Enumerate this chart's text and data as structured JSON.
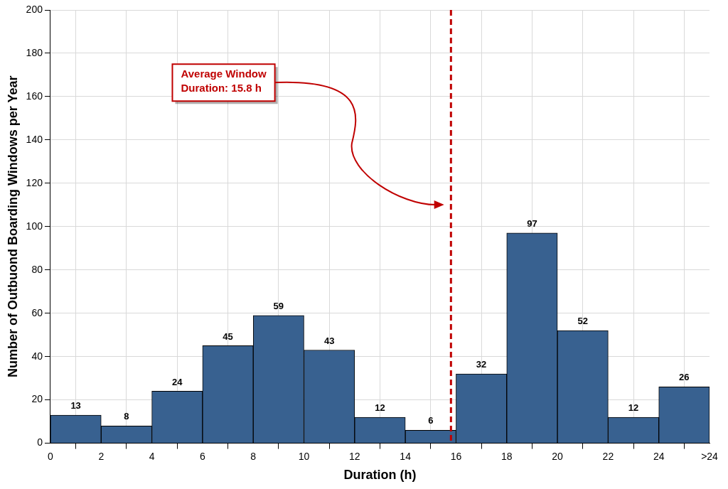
{
  "chart_data": {
    "type": "histogram",
    "xlabel": "Duration (h)",
    "ylabel": "Number of Outbuond Boarding Windows per Year",
    "bins": [
      0,
      2,
      4,
      6,
      8,
      10,
      12,
      14,
      16,
      18,
      20,
      22,
      24,
      26
    ],
    "values": [
      13,
      8,
      24,
      45,
      59,
      43,
      12,
      6,
      32,
      97,
      52,
      12,
      26
    ],
    "color": "#386190",
    "data_labels": true,
    "xlim": [
      0,
      26
    ],
    "xticks": [
      0,
      2,
      4,
      6,
      8,
      10,
      12,
      14,
      16,
      18,
      20,
      22,
      24,
      {
        "value": 26,
        "label": ">24"
      }
    ],
    "ylim": [
      0,
      200
    ],
    "yticks": [
      0,
      20,
      40,
      60,
      80,
      100,
      120,
      140,
      160,
      180,
      200
    ],
    "grid": true,
    "legend": false,
    "ref_lines": [
      {
        "axis": "x",
        "value": 15.8,
        "label": "Average Window Duration: 15.8 h",
        "color": "#c00000",
        "line_style": "dashed"
      }
    ]
  }
}
